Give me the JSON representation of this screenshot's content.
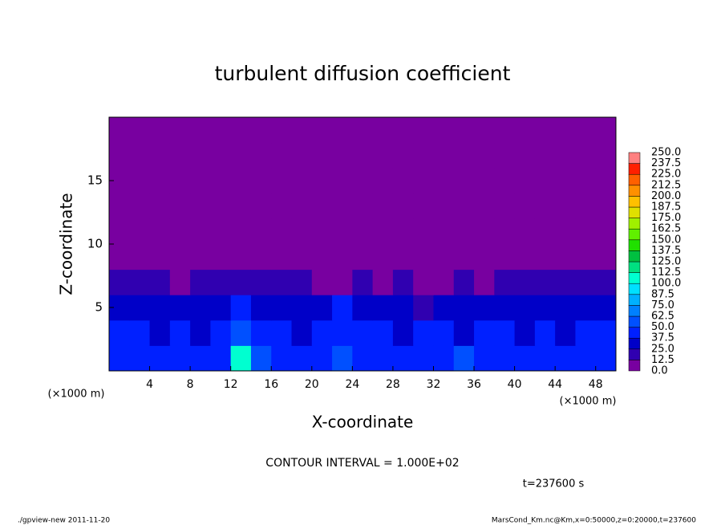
{
  "chart_data": {
    "type": "heatmap",
    "title": "turbulent diffusion coefficient",
    "xlabel": "X-coordinate",
    "ylabel": "Z-coordinate",
    "x_unit": "(×1000 m)",
    "y_unit": "(×1000 m)",
    "xlim": [
      0,
      50
    ],
    "ylim": [
      0,
      20
    ],
    "xticks": [
      4,
      8,
      12,
      16,
      20,
      24,
      28,
      32,
      36,
      40,
      44,
      48
    ],
    "yticks": [
      5,
      10,
      15
    ],
    "x": [
      1,
      3,
      5,
      7,
      9,
      11,
      13,
      15,
      17,
      19,
      21,
      23,
      25,
      27,
      29,
      31,
      33,
      35,
      37,
      39,
      41,
      43,
      45,
      47,
      49
    ],
    "y": [
      1,
      3,
      5,
      7,
      9,
      11,
      13,
      15,
      17,
      19
    ],
    "z": [
      [
        45,
        40,
        42,
        45,
        40,
        42,
        110,
        50,
        45,
        40,
        42,
        60,
        45,
        40,
        42,
        45,
        40,
        50,
        45,
        40,
        42,
        45,
        40,
        42,
        45
      ],
      [
        40,
        38,
        35,
        40,
        35,
        38,
        55,
        45,
        40,
        35,
        38,
        40,
        42,
        38,
        35,
        40,
        38,
        35,
        45,
        38,
        35,
        40,
        35,
        38,
        40
      ],
      [
        35,
        30,
        32,
        35,
        30,
        35,
        40,
        35,
        32,
        30,
        35,
        38,
        30,
        35,
        32,
        20,
        30,
        35,
        30,
        32,
        35,
        30,
        32,
        35,
        30
      ],
      [
        20,
        15,
        20,
        10,
        18,
        20,
        15,
        20,
        15,
        18,
        10,
        12,
        15,
        10,
        15,
        8,
        5,
        15,
        10,
        15,
        20,
        18,
        15,
        20,
        18
      ],
      [
        0,
        0,
        0,
        0,
        0,
        0,
        0,
        0,
        0,
        0,
        0,
        0,
        0,
        0,
        0,
        0,
        0,
        0,
        0,
        0,
        0,
        0,
        0,
        0,
        0
      ],
      [
        0,
        0,
        0,
        0,
        0,
        0,
        0,
        0,
        0,
        0,
        0,
        0,
        0,
        0,
        0,
        0,
        0,
        0,
        0,
        0,
        0,
        0,
        0,
        0,
        0
      ],
      [
        0,
        0,
        0,
        0,
        0,
        0,
        0,
        0,
        0,
        0,
        0,
        0,
        0,
        0,
        0,
        0,
        0,
        0,
        0,
        0,
        0,
        0,
        0,
        0,
        0
      ],
      [
        0,
        0,
        0,
        0,
        0,
        0,
        0,
        0,
        0,
        0,
        0,
        0,
        0,
        0,
        0,
        0,
        0,
        0,
        0,
        0,
        0,
        0,
        0,
        0,
        0
      ],
      [
        0,
        0,
        0,
        0,
        0,
        0,
        0,
        0,
        0,
        0,
        0,
        0,
        0,
        0,
        0,
        0,
        0,
        0,
        0,
        0,
        0,
        0,
        0,
        0,
        0
      ],
      [
        0,
        0,
        0,
        0,
        0,
        0,
        0,
        0,
        0,
        0,
        0,
        0,
        0,
        0,
        0,
        0,
        0,
        0,
        0,
        0,
        0,
        0,
        0,
        0,
        0
      ]
    ],
    "levels": [
      {
        "value": 0,
        "label": "0.0"
      },
      {
        "value": 12.5,
        "label": "12.5"
      },
      {
        "value": 25,
        "label": "25.0"
      },
      {
        "value": 37.5,
        "label": "37.5"
      },
      {
        "value": 50,
        "label": "50.0"
      },
      {
        "value": 62.5,
        "label": "62.5"
      },
      {
        "value": 75,
        "label": "75.0"
      },
      {
        "value": 87.5,
        "label": "87.5"
      },
      {
        "value": 100,
        "label": "100.0"
      },
      {
        "value": 112.5,
        "label": "112.5"
      },
      {
        "value": 125,
        "label": "125.0"
      },
      {
        "value": 137.5,
        "label": "137.5"
      },
      {
        "value": 150,
        "label": "150.0"
      },
      {
        "value": 162.5,
        "label": "162.5"
      },
      {
        "value": 175,
        "label": "175.0"
      },
      {
        "value": 187.5,
        "label": "187.5"
      },
      {
        "value": 200,
        "label": "200.0"
      },
      {
        "value": 212.5,
        "label": "212.5"
      },
      {
        "value": 225,
        "label": "225.0"
      },
      {
        "value": 237.5,
        "label": "237.5"
      },
      {
        "value": 250,
        "label": "250.0"
      }
    ],
    "colors": [
      "#7800a0",
      "#3000b0",
      "#0000c8",
      "#0020ff",
      "#0050ff",
      "#0080ff",
      "#00b0ff",
      "#00e0ff",
      "#00ffd0",
      "#00e080",
      "#00c040",
      "#20e000",
      "#60f000",
      "#a0f000",
      "#e0e000",
      "#ffc000",
      "#ff9000",
      "#ff6000",
      "#ff2000",
      "#ff8080"
    ],
    "contour_note": "CONTOUR INTERVAL = 1.000E+02",
    "time_note": "t=237600 s",
    "footer_left": "./gpview-new  2011-11-20",
    "footer_right": "MarsCond_Km.nc@Km,x=0:50000,z=0:20000,t=237600"
  }
}
